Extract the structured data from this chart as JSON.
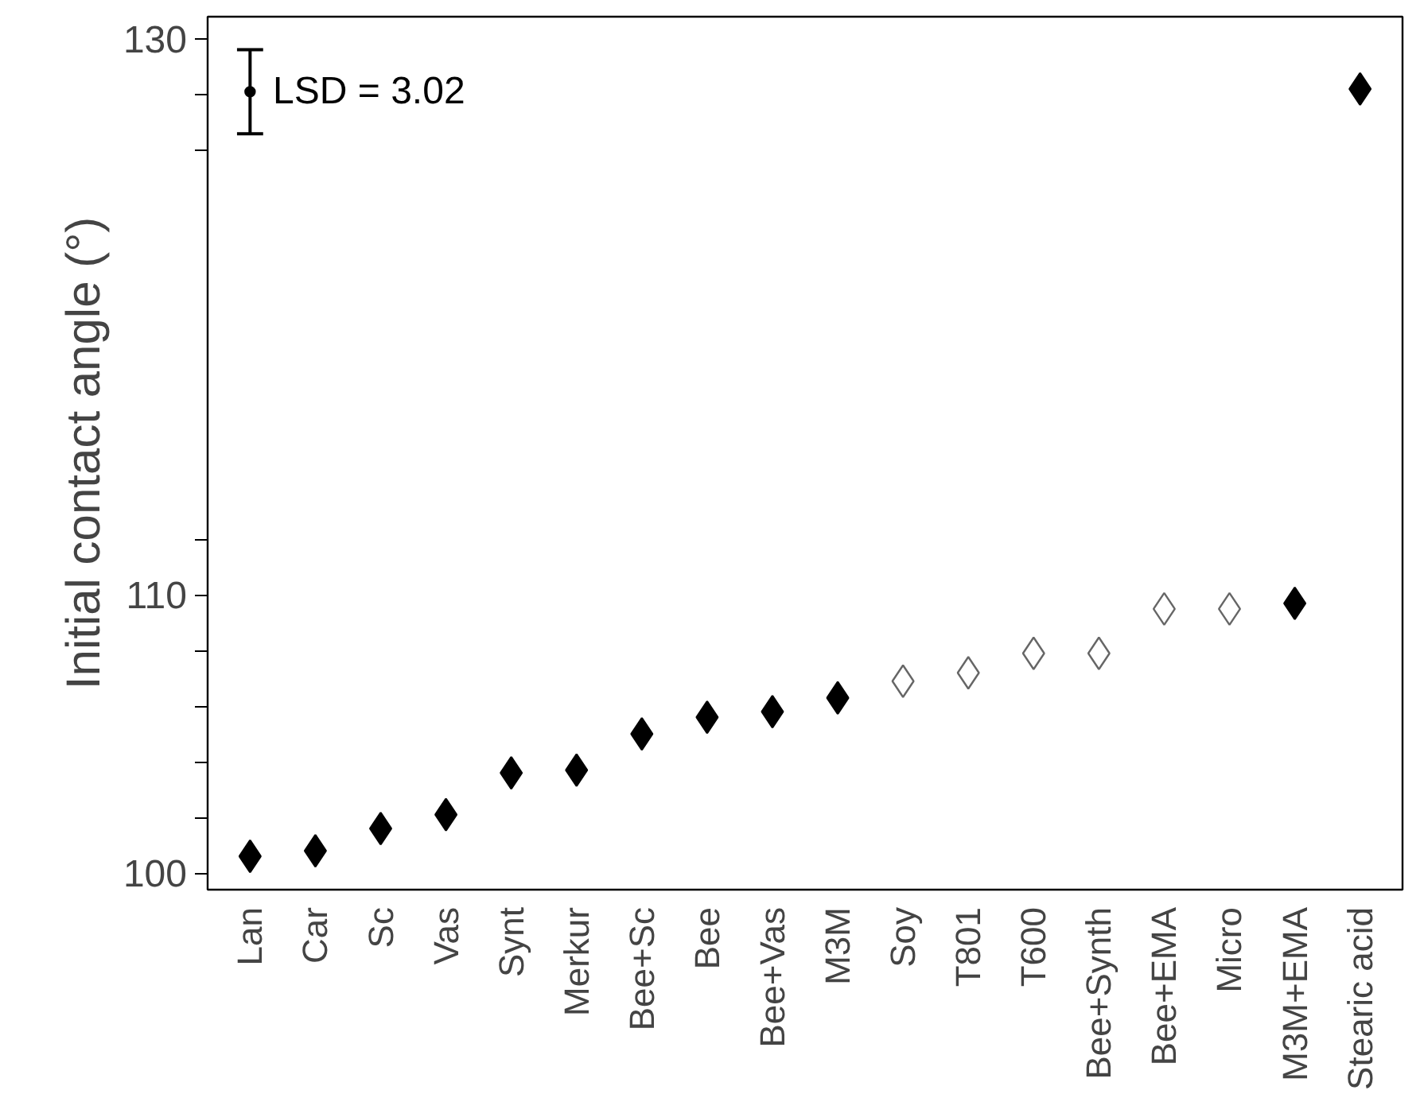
{
  "chart_data": {
    "type": "scatter",
    "ylabel": "Initial contact angle (°)",
    "categories": [
      "Lan",
      "Car",
      "Sc",
      "Vas",
      "Synt",
      "Merkur",
      "Bee+Sc",
      "Bee",
      "Bee+Vas",
      "M3M",
      "Soy",
      "T801",
      "T600",
      "Bee+Synth",
      "Bee+EMA",
      "Micro",
      "M3M+EMA",
      "Stearic acid"
    ],
    "series": [
      {
        "color": "#000000",
        "values": [
          100.6,
          100.8,
          101.6,
          102.1,
          103.6,
          103.7,
          105.0,
          105.6,
          105.8,
          106.3,
          null,
          null,
          null,
          null,
          null,
          null,
          109.7,
          128.2
        ]
      },
      {
        "color": "#ffffff",
        "values": [
          null,
          null,
          null,
          null,
          null,
          null,
          null,
          null,
          null,
          null,
          106.9,
          107.2,
          107.9,
          107.9,
          109.5,
          109.5,
          null,
          null
        ]
      },
      {
        "color": "#000000",
        "marker": "circle",
        "values": [
          128.1,
          null,
          null,
          null,
          null,
          null,
          null,
          null,
          null,
          null,
          null,
          null,
          null,
          null,
          null,
          null,
          null,
          null
        ],
        "errors": [
          1.51,
          null,
          null,
          null,
          null,
          null,
          null,
          null,
          null,
          null,
          null,
          null,
          null,
          null,
          null,
          null,
          null,
          null
        ]
      }
    ],
    "annotations": [
      "LSD = 3.02"
    ],
    "marker": "diamond",
    "ylim": [
      99.4,
      130.8
    ],
    "yticks": [
      100,
      {
        "value": 102,
        "label": null
      },
      {
        "value": 104,
        "label": null
      },
      {
        "value": 106,
        "label": null
      },
      {
        "value": 108,
        "label": null
      },
      110,
      {
        "value": 112,
        "label": null
      },
      {
        "value": 126,
        "label": null
      },
      {
        "value": 128,
        "label": null
      },
      130
    ],
    "grid": false
  }
}
